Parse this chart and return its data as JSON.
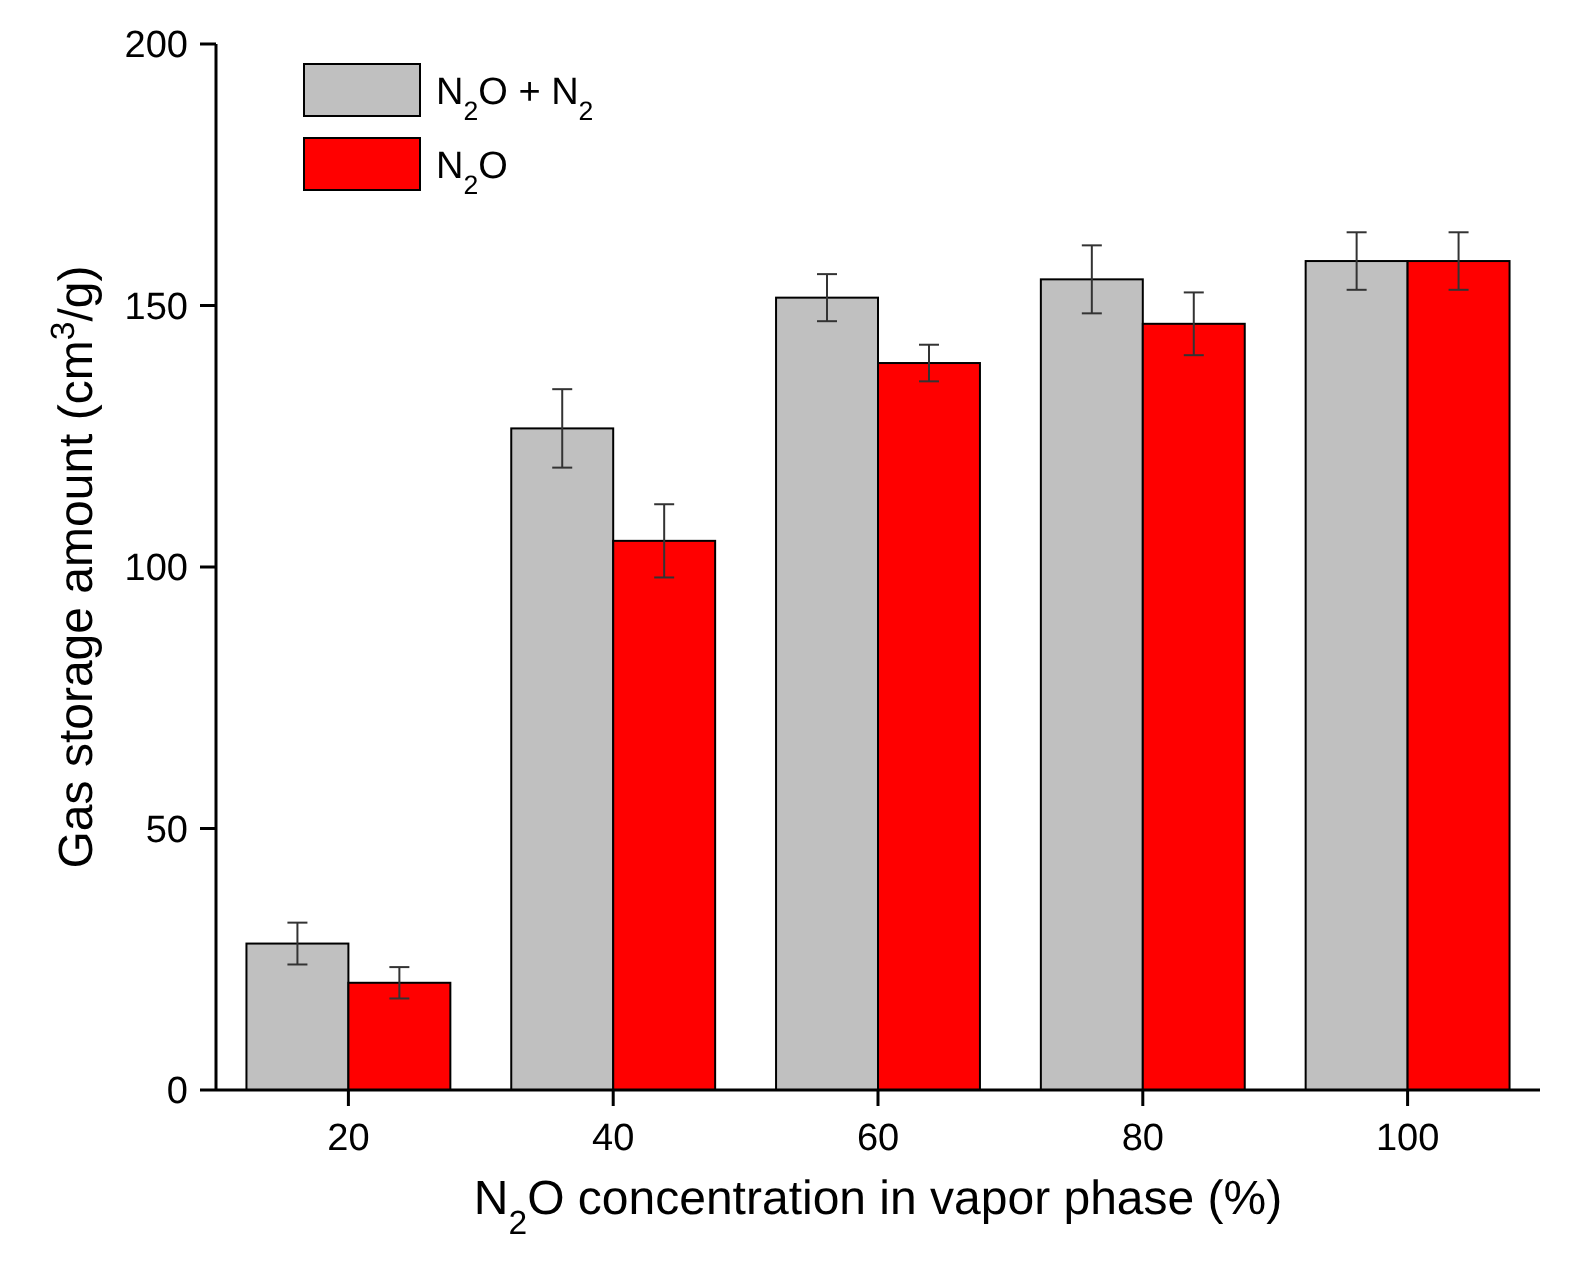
{
  "chart_data": {
    "type": "bar",
    "xlabel": "N$_{2}$O concentration in vapor phase (%)",
    "ylabel": "Gas storage amount (cm$^{3}$/g)",
    "categories": [
      "20",
      "40",
      "60",
      "80",
      "100"
    ],
    "series": [
      {
        "name": "N$_{2}$O + N$_{2}$",
        "color": "#c0c0c0",
        "values": [
          28,
          126.5,
          151.5,
          155,
          158.5
        ],
        "errors": [
          4,
          7.5,
          4.5,
          6.5,
          5.5
        ]
      },
      {
        "name": "N$_{2}$O",
        "color": "#ff0000",
        "values": [
          20.5,
          105,
          139,
          146.5,
          158.5
        ],
        "errors": [
          3,
          7,
          3.5,
          6,
          5.5
        ]
      }
    ],
    "ylim": [
      0,
      200
    ],
    "yticks": [
      0,
      50,
      100,
      150,
      200
    ],
    "legend": "top left"
  }
}
